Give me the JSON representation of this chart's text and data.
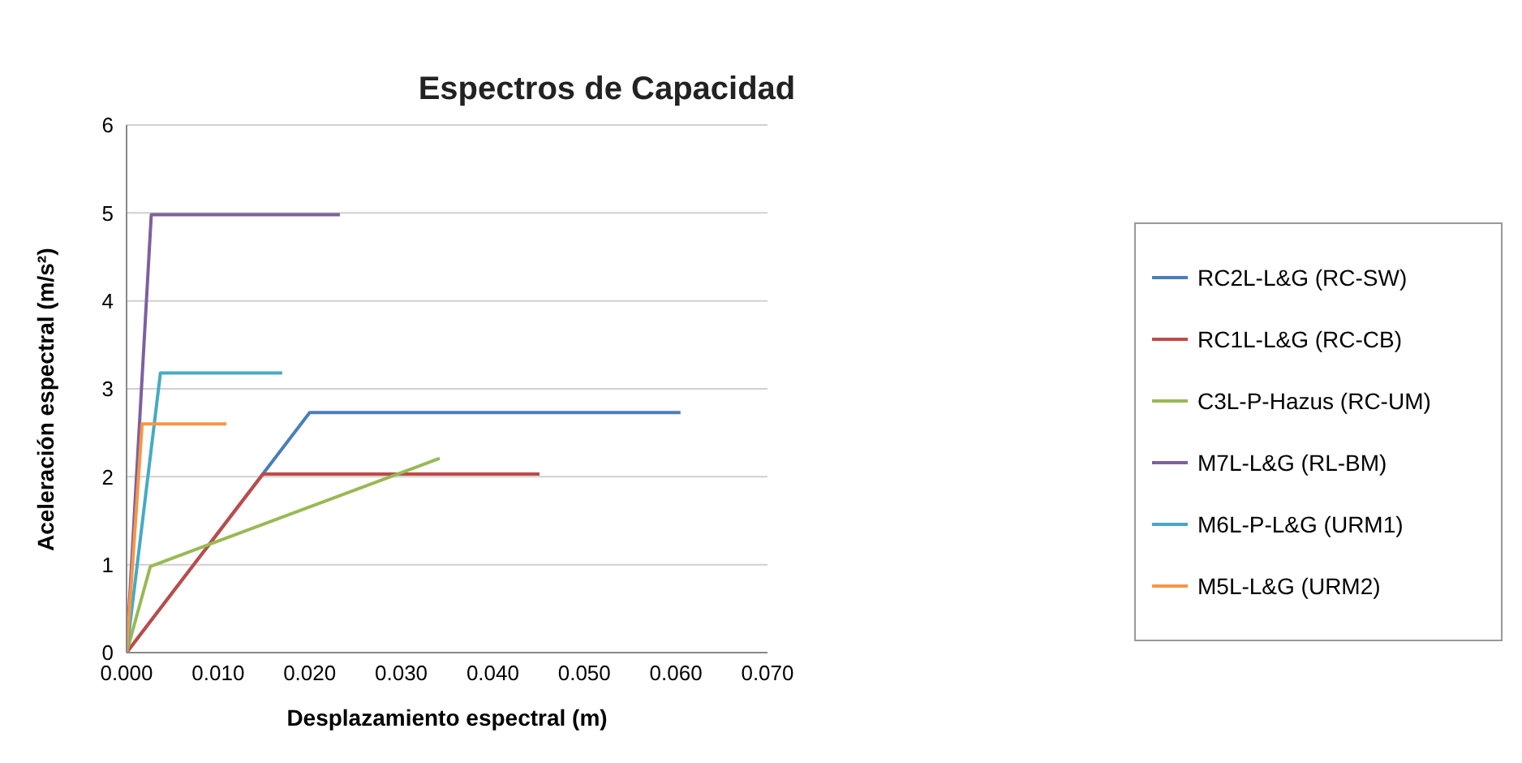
{
  "chart_data": {
    "type": "line",
    "title": "Espectros de Capacidad",
    "xlabel": "Desplazamiento espectral (m)",
    "ylabel": "Aceleración espectral (m/s²)",
    "xlim": [
      0,
      0.07
    ],
    "xticks": [
      {
        "value": 0,
        "label": "0.000"
      },
      {
        "value": 0.01,
        "label": "0.010"
      },
      {
        "value": 0.02,
        "label": "0.020"
      },
      {
        "value": 0.03,
        "label": "0.030"
      },
      {
        "value": 0.04,
        "label": "0.040"
      },
      {
        "value": 0.05,
        "label": "0.050"
      },
      {
        "value": 0.06,
        "label": "0.060"
      },
      {
        "value": 0.07,
        "label": "0.070"
      }
    ],
    "ylim": [
      0,
      6
    ],
    "yticks": [
      0,
      1,
      2,
      3,
      4,
      5,
      6
    ],
    "grid": "y",
    "legend": "right",
    "marker": "none",
    "line_style": "solid",
    "series": [
      {
        "name": "RC2L-L&G (RC-SW)",
        "color": "#4a7ebb",
        "x": [
          0,
          0.02,
          0.0605
        ],
        "values": [
          0,
          2.73,
          2.73
        ]
      },
      {
        "name": "RC1L-L&G (RC-CB)",
        "color": "#be4b48",
        "x": [
          0,
          0.0149,
          0.0451
        ],
        "values": [
          0,
          2.03,
          2.03
        ]
      },
      {
        "name": "C3L-P-Hazus (RC-UM)",
        "color": "#98b954",
        "x": [
          0,
          0.0026,
          0.0342
        ],
        "values": [
          0,
          0.98,
          2.21
        ]
      },
      {
        "name": "M7L-L&G (RL-BM)",
        "color": "#7d60a0",
        "x": [
          0,
          0.0027,
          0.0233
        ],
        "values": [
          0,
          4.98,
          4.98
        ]
      },
      {
        "name": "M6L-P-L&G (URM1)",
        "color": "#46aac5",
        "x": [
          0,
          0.0037,
          0.017
        ],
        "values": [
          0,
          3.18,
          3.18
        ]
      },
      {
        "name": "M5L-L&G (URM2)",
        "color": "#f79646",
        "x": [
          0,
          0.0017,
          0.0109
        ],
        "values": [
          0,
          2.6,
          2.6
        ]
      }
    ]
  }
}
